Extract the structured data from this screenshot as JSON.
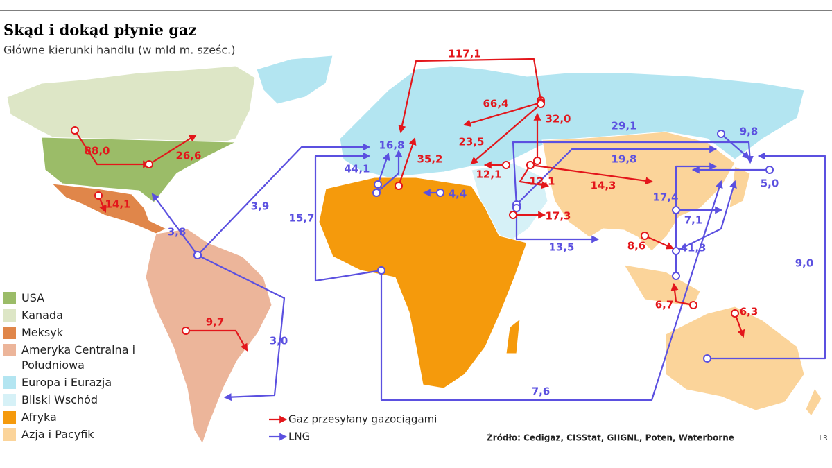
{
  "header": {
    "title": "Skąd i dokąd płynie gaz",
    "subtitle": "Główne kierunki handlu (w mld m. sześc.)"
  },
  "legend": [
    {
      "label": "USA",
      "color": "#9bbc68"
    },
    {
      "label": "Kanada",
      "color": "#dde6c6"
    },
    {
      "label": "Meksyk",
      "color": "#e0864a"
    },
    {
      "label": "Ameryka Centralna i Południowa",
      "color": "#ecb59a"
    },
    {
      "label": "Europa i Eurazja",
      "color": "#b3e5f1"
    },
    {
      "label": "Bliski Wschód",
      "color": "#d6f1f7"
    },
    {
      "label": "Afryka",
      "color": "#f59a0c"
    },
    {
      "label": "Azja i Pacyfik",
      "color": "#fbd49a"
    }
  ],
  "flow_legend": [
    {
      "label": "Gaz przesyłany gazociągami",
      "color": "#e3161b"
    },
    {
      "label": "LNG",
      "color": "#5b50e0"
    }
  ],
  "pipelines": [
    "117,1",
    "66,4",
    "32,0",
    "23,5",
    "88,0",
    "26,6",
    "35,2",
    "12,1",
    "12,1",
    "14,3",
    "14,1",
    "17,3",
    "8,6",
    "6,7",
    "6,3",
    "9,7"
  ],
  "lng": [
    "16,8",
    "44,1",
    "4,4",
    "29,1",
    "9,8",
    "19,8",
    "17,4",
    "7,1",
    "41,3",
    "5,0",
    "9,0",
    "13,5",
    "15,7",
    "3,9",
    "3,8",
    "3,0",
    "7,6"
  ],
  "source": "Źródło: Cedigaz, CISStat, GIIGNL, Poten, Waterborne",
  "credit": "LR"
}
